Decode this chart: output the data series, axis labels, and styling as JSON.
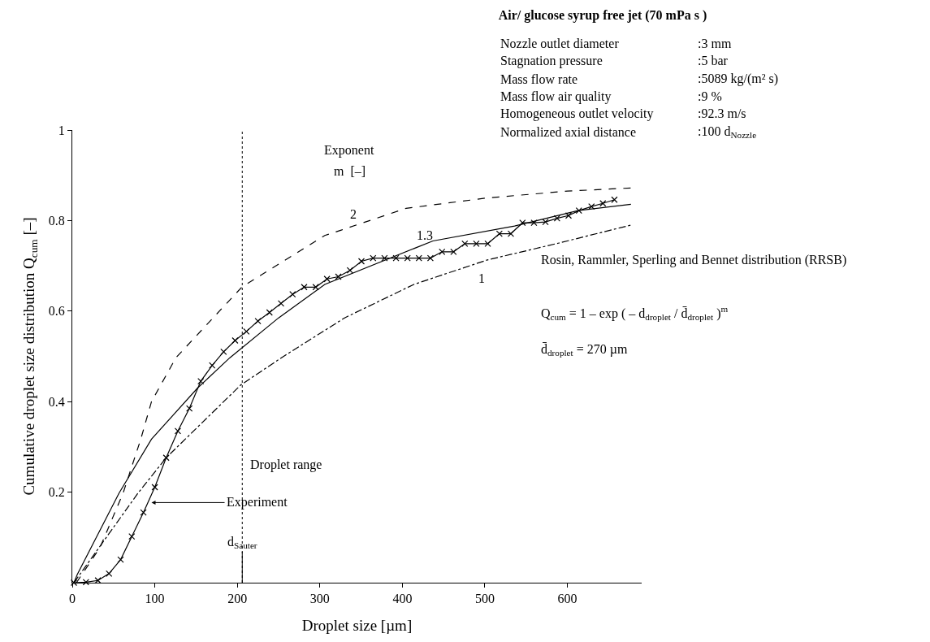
{
  "chart_data": {
    "type": "line",
    "title": "Air/ glucose syrup free jet (70 mPa s )",
    "xlabel": "Droplet size [µm]",
    "ylabel": "Cumulative droplet size distribution Q$_{cum}$ [–]",
    "xlim": [
      0,
      690
    ],
    "ylim": [
      0,
      1
    ],
    "xticks": [
      0,
      100,
      200,
      300,
      400,
      500,
      600
    ],
    "yticks": [
      0.2,
      0.4,
      0.6,
      0.8,
      1
    ],
    "series": [
      {
        "color": "#000000",
        "marker": "cross",
        "line_style": "solid",
        "x": [
          2,
          16.6,
          31.1,
          44.5,
          58.6,
          72.1,
          86.2,
          100,
          113.8,
          127.9,
          141.9,
          155.7,
          169.5,
          183.4,
          197.3,
          211,
          225,
          239,
          253,
          267,
          281,
          295,
          308.7,
          322.4,
          336.5,
          350.4,
          364.5,
          378.4,
          392.3,
          406.2,
          420.1,
          434,
          448.1,
          462,
          475.7,
          489.6,
          503.5,
          517.6,
          531.5,
          545.6,
          559.5,
          573.4,
          587.5,
          601.4,
          614,
          629.2,
          643,
          657
        ],
        "values": [
          0,
          0.001,
          0.005,
          0.02,
          0.051,
          0.102,
          0.155,
          0.211,
          0.276,
          0.335,
          0.385,
          0.445,
          0.48,
          0.51,
          0.535,
          0.555,
          0.578,
          0.597,
          0.617,
          0.637,
          0.653,
          0.653,
          0.671,
          0.676,
          0.69,
          0.71,
          0.717,
          0.717,
          0.717,
          0.717,
          0.717,
          0.717,
          0.731,
          0.731,
          0.749,
          0.749,
          0.749,
          0.771,
          0.771,
          0.795,
          0.795,
          0.797,
          0.805,
          0.811,
          0.822,
          0.831,
          0.838,
          0.846
        ]
      },
      {
        "color": "#000000",
        "marker": "none",
        "line_style": "dashed",
        "x": [
          5,
          33.7,
          61.6,
          83,
          96,
          125.6,
          206,
          306,
          326,
          404.5,
          503,
          600,
          677
        ],
        "values": [
          0,
          0.078,
          0.198,
          0.317,
          0.4,
          0.497,
          0.654,
          0.767,
          0.779,
          0.827,
          0.85,
          0.865,
          0.872
        ]
      },
      {
        "color": "#000000",
        "marker": "none",
        "line_style": "solid",
        "x": [
          2,
          6,
          56.7,
          96,
          151.8,
          191,
          250,
          306,
          437,
          536,
          613,
          677
        ],
        "values": [
          0,
          0.018,
          0.198,
          0.317,
          0.43,
          0.497,
          0.585,
          0.659,
          0.755,
          0.788,
          0.822,
          0.836
        ]
      },
      {
        "color": "#000000",
        "marker": "none",
        "line_style": "dashdot",
        "x": [
          2,
          79.7,
          113.8,
          204.3,
          253.5,
          330,
          414,
          503,
          589,
          677
        ],
        "values": [
          0,
          0.198,
          0.276,
          0.437,
          0.497,
          0.585,
          0.659,
          0.713,
          0.75,
          0.79
        ]
      }
    ],
    "ref_lines": [
      {
        "axis": "x",
        "value": 206,
        "label": "Droplet range",
        "line_style": "dotted",
        "color": "#000000"
      }
    ],
    "annotations": [
      "2",
      "1.3",
      "1",
      {
        "text": "Experiment",
        "x": 96,
        "y": 0.177
      },
      {
        "text": "d$_{Sauter}$",
        "x": 206,
        "y": 0
      },
      "Exponent",
      "m  [–]",
      "Nozzle outlet diameter",
      ":3 mm",
      "Stagnation pressure",
      ":5 bar",
      "Mass flow rate",
      ":5089 kg/(m² s)",
      "Mass flow air quality",
      ":9 %",
      "Homogeneous outlet velocity",
      ":92.3 m/s",
      "Normalized axial distance",
      ":100 d$_{Nozzle}$",
      "Rosin, Rammler, Sperling and Bennet distribution (RRSB)",
      "Q$_{cum}$ = 1 – exp ( – d$_{droplet}$ / d̄$_{droplet}$ )$^{m}$",
      "d̄$_{droplet}$ = 270 µm"
    ]
  }
}
